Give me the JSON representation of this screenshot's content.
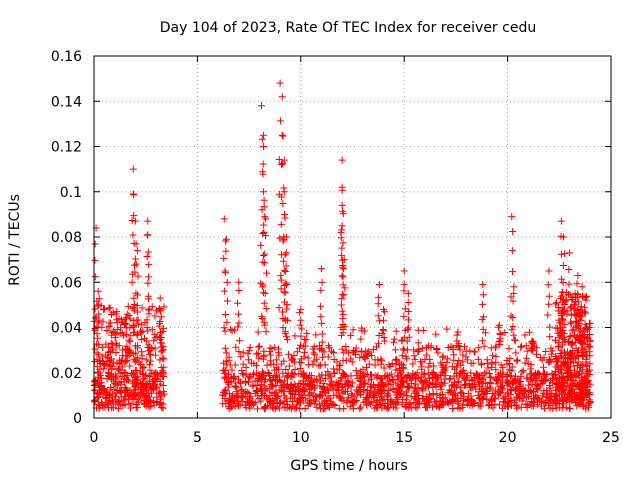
{
  "chart_data": {
    "type": "scatter",
    "title": "Day 104 of 2023, Rate Of TEC Index for receiver cedu",
    "xlabel": "GPS time / hours",
    "ylabel": "ROTI / TECUs",
    "xlim": [
      0,
      25
    ],
    "ylim": [
      0,
      0.16
    ],
    "xticks": [
      "0",
      "5",
      "10",
      "15",
      "20",
      "25"
    ],
    "yticks": [
      "0",
      "0.02",
      "0.04",
      "0.06",
      "0.08",
      "0.1",
      "0.12",
      "0.14",
      "0.16"
    ],
    "grid": true,
    "marker": "+",
    "series_color": "#ff0000",
    "density_profile": [
      {
        "x": [
          0.0,
          3.4
        ],
        "baseline": [
          0.004,
          0.02
        ],
        "max": 0.05
      },
      {
        "x": [
          6.2,
          24.0
        ],
        "baseline": [
          0.004,
          0.02
        ],
        "max": 0.04
      }
    ],
    "spikes": [
      {
        "x": 0.1,
        "y": 0.084
      },
      {
        "x": 0.2,
        "y": 0.056
      },
      {
        "x": 1.1,
        "y": 0.047
      },
      {
        "x": 1.9,
        "y": 0.11
      },
      {
        "x": 1.9,
        "y": 0.099
      },
      {
        "x": 2.0,
        "y": 0.087
      },
      {
        "x": 2.1,
        "y": 0.074
      },
      {
        "x": 2.6,
        "y": 0.087
      },
      {
        "x": 2.6,
        "y": 0.081
      },
      {
        "x": 3.2,
        "y": 0.053
      },
      {
        "x": 6.3,
        "y": 0.088
      },
      {
        "x": 6.4,
        "y": 0.079
      },
      {
        "x": 7.0,
        "y": 0.06
      },
      {
        "x": 8.1,
        "y": 0.138
      },
      {
        "x": 8.2,
        "y": 0.125
      },
      {
        "x": 8.2,
        "y": 0.12
      },
      {
        "x": 8.2,
        "y": 0.1
      },
      {
        "x": 8.3,
        "y": 0.088
      },
      {
        "x": 9.0,
        "y": 0.148
      },
      {
        "x": 9.1,
        "y": 0.142
      },
      {
        "x": 9.1,
        "y": 0.125
      },
      {
        "x": 9.2,
        "y": 0.114
      },
      {
        "x": 9.2,
        "y": 0.1
      },
      {
        "x": 9.3,
        "y": 0.08
      },
      {
        "x": 9.3,
        "y": 0.073
      },
      {
        "x": 10.0,
        "y": 0.048
      },
      {
        "x": 11.0,
        "y": 0.066
      },
      {
        "x": 12.0,
        "y": 0.114
      },
      {
        "x": 12.0,
        "y": 0.102
      },
      {
        "x": 12.0,
        "y": 0.094
      },
      {
        "x": 12.0,
        "y": 0.085
      },
      {
        "x": 12.1,
        "y": 0.07
      },
      {
        "x": 13.8,
        "y": 0.059
      },
      {
        "x": 14.0,
        "y": 0.048
      },
      {
        "x": 15.0,
        "y": 0.065
      },
      {
        "x": 15.2,
        "y": 0.055
      },
      {
        "x": 17.6,
        "y": 0.038
      },
      {
        "x": 18.8,
        "y": 0.059
      },
      {
        "x": 19.6,
        "y": 0.041
      },
      {
        "x": 20.2,
        "y": 0.089
      },
      {
        "x": 20.3,
        "y": 0.058
      },
      {
        "x": 21.2,
        "y": 0.034
      },
      {
        "x": 22.0,
        "y": 0.065
      },
      {
        "x": 22.6,
        "y": 0.087
      },
      {
        "x": 22.7,
        "y": 0.08
      },
      {
        "x": 23.0,
        "y": 0.073
      },
      {
        "x": 23.4,
        "y": 0.063
      },
      {
        "x": 23.6,
        "y": 0.058
      }
    ]
  }
}
